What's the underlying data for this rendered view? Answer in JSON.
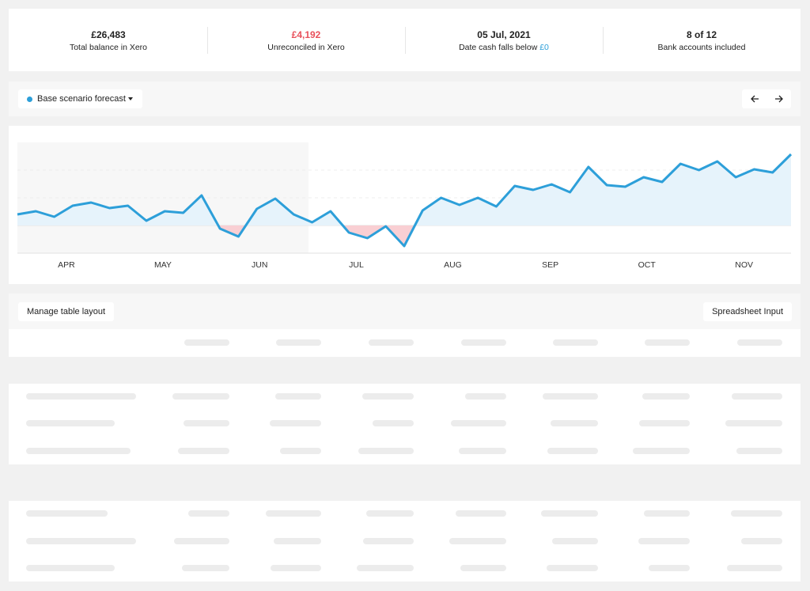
{
  "stats": [
    {
      "value": "£26,483",
      "label": "Total balance in Xero"
    },
    {
      "value": "£4,192",
      "label": "Unreconciled in Xero"
    },
    {
      "value": "05 Jul, 2021",
      "label": "Date cash falls below",
      "label_highlight": "£0"
    },
    {
      "value": "8 of 12",
      "label": "Bank accounts included"
    }
  ],
  "scenario_selector": "Base scenario forecast",
  "table_toolbar": {
    "left_button": "Manage table layout",
    "right_button": "Spreadsheet Input"
  },
  "chart_data": {
    "type": "line",
    "x": [
      0,
      1,
      2,
      3,
      4,
      5,
      6,
      7,
      8,
      9,
      10,
      11,
      12,
      13,
      14,
      15,
      16,
      17,
      18,
      19,
      20,
      21,
      22,
      23,
      24,
      25,
      26,
      27,
      28,
      29,
      30,
      31,
      32,
      33,
      34,
      35,
      36,
      37,
      38,
      39,
      40,
      41,
      42
    ],
    "series": [
      {
        "name": "Base scenario forecast",
        "color": "#2d9fd9",
        "values": [
          14,
          18,
          11,
          25,
          29,
          22,
          25,
          6,
          18,
          16,
          38,
          -4,
          -14,
          21,
          34,
          14,
          4,
          18,
          -9,
          -16,
          -1,
          -26,
          19,
          35,
          26,
          35,
          24,
          50,
          45,
          52,
          42,
          74,
          51,
          49,
          61,
          55,
          78,
          70,
          81,
          61,
          71,
          67,
          90
        ]
      }
    ],
    "xlim": [
      0,
      42
    ],
    "xticks": [
      {
        "value": 2.66,
        "label": "APR"
      },
      {
        "value": 7.9,
        "label": "MAY"
      },
      {
        "value": 13.15,
        "label": "JUN"
      },
      {
        "value": 18.4,
        "label": "JUL"
      },
      {
        "value": 23.64,
        "label": "AUG"
      },
      {
        "value": 28.93,
        "label": "SEP"
      },
      {
        "value": 34.17,
        "label": "OCT"
      },
      {
        "value": 39.45,
        "label": "NOV"
      }
    ],
    "ylim": [
      -35,
      105
    ],
    "yticks": [
      0,
      35,
      70
    ],
    "grid": true,
    "positive_fill": "#e6f3fb",
    "negative_fill": "#f9cfd3"
  }
}
